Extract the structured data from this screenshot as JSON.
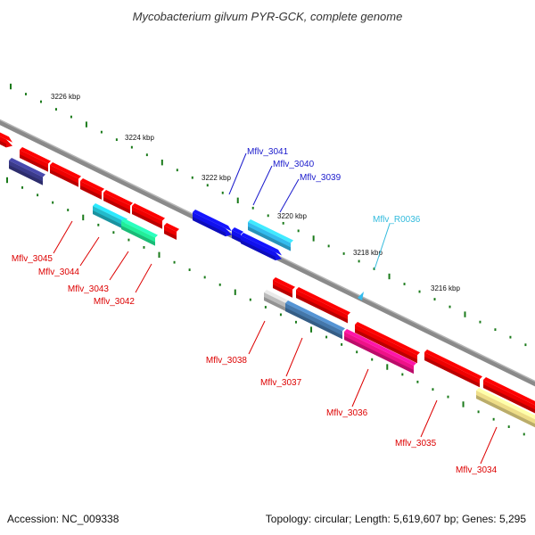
{
  "title": "Mycobacterium gilvum PYR-GCK, complete genome",
  "footer": {
    "accession": "Accession: NC_009338",
    "summary": "Topology: circular; Length: 5,619,607 bp; Genes: 5,295"
  },
  "colors": {
    "backbone": "#777777",
    "tick": "#1a7a1a",
    "label_red": "#dd0000",
    "label_blue": "#1a1acc",
    "label_cyan": "#33bbdd"
  },
  "ruler_ticks": [
    "3226 kbp",
    "3224 kbp",
    "3222 kbp",
    "3220 kbp",
    "3218 kbp",
    "3216 kbp"
  ],
  "genes": [
    {
      "id": "Mflv_3045",
      "label": "Mflv_3045",
      "color": "#ee0000",
      "label_color": "red"
    },
    {
      "id": "Mflv_3044",
      "label": "Mflv_3044",
      "color": "#ee0000",
      "label_color": "red"
    },
    {
      "id": "Mflv_3043",
      "label": "Mflv_3043",
      "color": "#22bbcc",
      "label_color": "red"
    },
    {
      "id": "Mflv_3042",
      "label": "Mflv_3042",
      "color": "#22ee99",
      "label_color": "red"
    },
    {
      "id": "Mflv_3041",
      "label": "Mflv_3041",
      "color": "#1111ee",
      "label_color": "blue"
    },
    {
      "id": "Mflv_3040",
      "label": "Mflv_3040",
      "color": "#1111ee",
      "label_color": "blue"
    },
    {
      "id": "Mflv_3039",
      "label": "Mflv_3039",
      "color": "#1111ee",
      "label_color": "blue"
    },
    {
      "id": "Mflv_R0036",
      "label": "Mflv_R0036",
      "color": "#33bbee",
      "label_color": "cyan"
    },
    {
      "id": "Mflv_3038",
      "label": "Mflv_3038",
      "color": "#ee0000",
      "label_color": "red"
    },
    {
      "id": "Mflv_3037",
      "label": "Mflv_3037",
      "color": "#4477aa",
      "label_color": "red"
    },
    {
      "id": "Mflv_3036",
      "label": "Mflv_3036",
      "color": "#ee1188",
      "label_color": "red"
    },
    {
      "id": "Mflv_3035",
      "label": "Mflv_3035",
      "color": "#ee0000",
      "label_color": "red"
    },
    {
      "id": "Mflv_3034",
      "label": "Mflv_3034",
      "color": "#eedd88",
      "label_color": "red"
    }
  ]
}
